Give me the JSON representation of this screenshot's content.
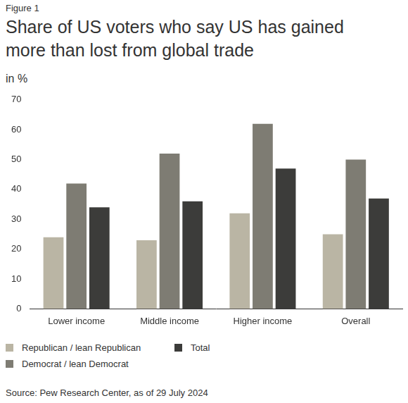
{
  "chart_data": {
    "type": "bar",
    "figure_label": "Figure 1",
    "title": "Share of US voters who say US has gained more than lost from global trade",
    "y_label": "in %",
    "source": "Source: Pew Research Center, as of 29 July 2024",
    "categories": [
      "Lower income",
      "Middle income",
      "Higher income",
      "Overall"
    ],
    "series": [
      {
        "name": "Republican / lean Republican",
        "color": "#bab5a4",
        "values": [
          24,
          23,
          32,
          25
        ]
      },
      {
        "name": "Democrat / lean Democrat",
        "color": "#7e7c73",
        "values": [
          42,
          52,
          62,
          50
        ]
      },
      {
        "name": "Total",
        "color": "#3c3c3a",
        "values": [
          34,
          36,
          47,
          37
        ]
      }
    ],
    "ylim": [
      0,
      70
    ],
    "yticks": [
      0,
      10,
      20,
      30,
      40,
      50,
      60,
      70
    ],
    "grid": false,
    "legend": "bottom"
  }
}
